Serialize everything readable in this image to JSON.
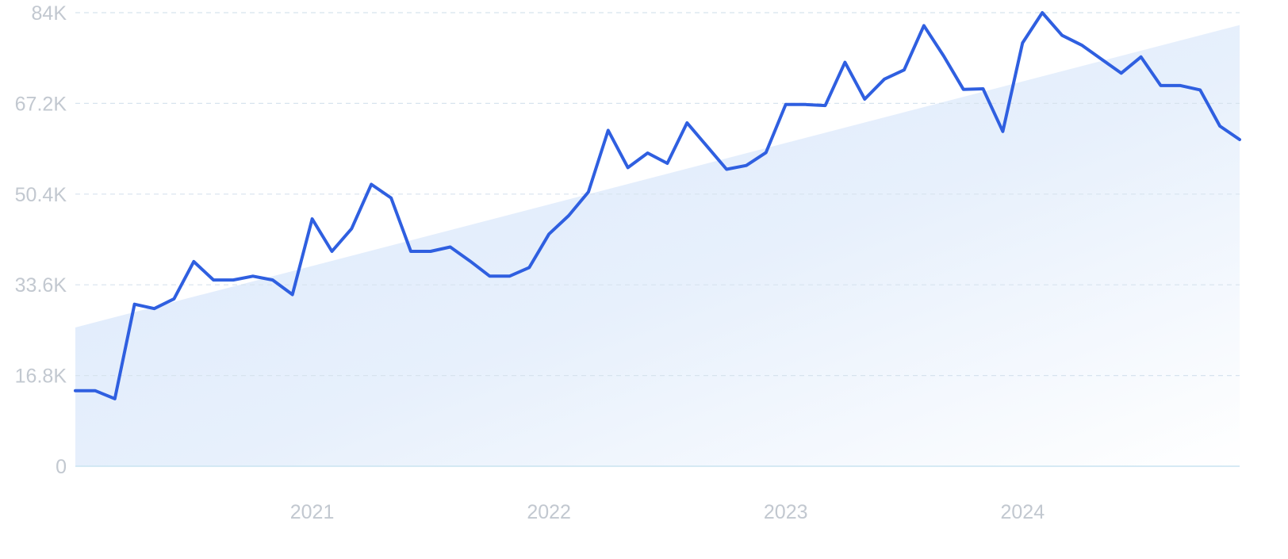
{
  "chart_data": {
    "type": "line",
    "title": "",
    "xlabel": "",
    "ylabel": "",
    "ylim": [
      0,
      84000
    ],
    "y_ticks": [
      0,
      16800,
      33600,
      50400,
      67200,
      84000
    ],
    "y_tick_labels": [
      "0",
      "16.8K",
      "33.6K",
      "50.4K",
      "67.2K",
      "84K"
    ],
    "x_ticks": [
      {
        "label": "2021",
        "month_index": 12
      },
      {
        "label": "2022",
        "month_index": 24
      },
      {
        "label": "2023",
        "month_index": 36
      },
      {
        "label": "2024",
        "month_index": 48
      }
    ],
    "grid": {
      "horizontal": true,
      "style": "dashed"
    },
    "legend": "none",
    "colors": {
      "line": "#2f5fe0",
      "trend_fill": "#dce9fb",
      "grid": "#d7e3ee",
      "baseline": "#c9e4f0",
      "tick_label": "#c2c8d0"
    },
    "trend": {
      "start_value": 25700,
      "end_value": 81700
    },
    "series": [
      {
        "values": [
          14000,
          14000,
          12500,
          30000,
          29200,
          31000,
          37900,
          34500,
          34500,
          35200,
          34500,
          31800,
          45800,
          39800,
          44000,
          52200,
          49700,
          39800,
          39800,
          40600,
          38000,
          35200,
          35200,
          36800,
          43000,
          46400,
          50800,
          62200,
          55300,
          58000,
          56100,
          63600,
          59300,
          55000,
          55700,
          58100,
          67000,
          67000,
          66800,
          74800,
          68000,
          71700,
          73400,
          81600,
          76000,
          69800,
          69900,
          62000,
          78400,
          84000,
          79800,
          78000,
          75400,
          72800,
          75800,
          70500,
          70500,
          69700,
          63000,
          60500
        ]
      }
    ]
  }
}
